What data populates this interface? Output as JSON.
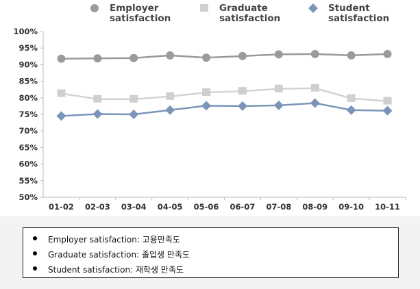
{
  "chart_data": {
    "type": "line",
    "categories": [
      "01-02",
      "02-03",
      "03-04",
      "04-05",
      "05-06",
      "06-07",
      "07-08",
      "08-09",
      "09-10",
      "10-11"
    ],
    "series": [
      {
        "name": "Employer satisfaction",
        "legend_lines": [
          "Employer",
          "satisfaction"
        ],
        "marker": "circle",
        "line_color": "#999999",
        "marker_color": "#9b9b9b",
        "values": [
          91.8,
          91.9,
          92.0,
          92.8,
          92.1,
          92.6,
          93.1,
          93.2,
          92.8,
          93.2
        ]
      },
      {
        "name": "Graduate satisfaction",
        "legend_lines": [
          "Graduate",
          "satisfaction"
        ],
        "marker": "square",
        "line_color": "#d3d3d3",
        "marker_color": "#cfcfcf",
        "values": [
          81.3,
          79.6,
          79.6,
          80.4,
          81.6,
          82.0,
          82.7,
          82.9,
          79.8,
          79.0
        ]
      },
      {
        "name": "Student satisfaction",
        "legend_lines": [
          "Student",
          "satisfaction"
        ],
        "marker": "diamond",
        "line_color": "#7b95b8",
        "marker_color": "#7b95b8",
        "values": [
          74.5,
          75.1,
          75.0,
          76.3,
          77.6,
          77.5,
          77.7,
          78.4,
          76.3,
          76.1
        ]
      }
    ],
    "y_ticks": [
      "100%",
      "95%",
      "90%",
      "85%",
      "80%",
      "75%",
      "70%",
      "65%",
      "60%",
      "55%",
      "50%"
    ],
    "ylim": [
      50,
      100
    ],
    "grid": false,
    "legend_position": "top"
  },
  "note": {
    "lines": [
      "Employer satisfaction: 고용만족도",
      "Graduate satisfaction: 졸업생 만족도",
      "Student satisfaction: 재학생 만족도"
    ]
  }
}
